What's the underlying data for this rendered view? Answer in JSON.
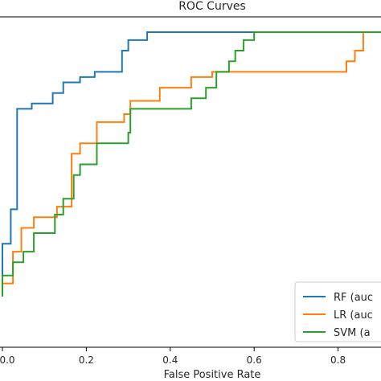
{
  "chart_data": {
    "type": "line",
    "title": "ROC Curves",
    "xlabel": "False Positive Rate",
    "ylabel": "",
    "xlim": [
      0.0,
      1.0
    ],
    "ylim": [
      0.0,
      1.03
    ],
    "xticks": [
      "0.0",
      "0.2",
      "0.4",
      "0.6",
      "0.8"
    ],
    "xtick_values": [
      0.0,
      0.2,
      0.4,
      0.6,
      0.8
    ],
    "grid": false,
    "legend_position": "bottom-right",
    "series": [
      {
        "name": "RF (auc",
        "color": "#1f77b4",
        "x": [
          0,
          0,
          0.02,
          0.02,
          0.035,
          0.035,
          0.07,
          0.07,
          0.12,
          0.12,
          0.145,
          0.145,
          0.185,
          0.185,
          0.22,
          0.22,
          0.275,
          0.275,
          0.285,
          0.285,
          0.3,
          0.3,
          0.345,
          0.345,
          0.57,
          0.57,
          1.0
        ],
        "y": [
          0,
          0.2,
          0.2,
          0.33,
          0.33,
          0.71,
          0.71,
          0.73,
          0.73,
          0.77,
          0.77,
          0.81,
          0.81,
          0.83,
          0.83,
          0.85,
          0.85,
          0.85,
          0.85,
          0.93,
          0.93,
          0.97,
          0.97,
          1.0,
          1.0,
          1.0,
          1.0
        ]
      },
      {
        "name": "LR (auc",
        "color": "#ff7f0e",
        "x": [
          0,
          0,
          0.025,
          0.025,
          0.045,
          0.045,
          0.075,
          0.075,
          0.13,
          0.13,
          0.165,
          0.165,
          0.185,
          0.185,
          0.225,
          0.225,
          0.285,
          0.285,
          0.29,
          0.29,
          0.305,
          0.305,
          0.375,
          0.375,
          0.43,
          0.43,
          0.45,
          0.45,
          0.5,
          0.5,
          0.81,
          0.81,
          0.82,
          0.82,
          0.84,
          0.84,
          0.86,
          0.86,
          1.0
        ],
        "y": [
          0,
          0.05,
          0.05,
          0.17,
          0.17,
          0.26,
          0.26,
          0.3,
          0.3,
          0.34,
          0.34,
          0.54,
          0.54,
          0.58,
          0.58,
          0.66,
          0.66,
          0.66,
          0.66,
          0.69,
          0.69,
          0.74,
          0.74,
          0.79,
          0.79,
          0.79,
          0.79,
          0.83,
          0.83,
          0.85,
          0.85,
          0.85,
          0.85,
          0.89,
          0.89,
          0.93,
          0.93,
          1.0,
          1.0
        ]
      },
      {
        "name": "SVM (a",
        "color": "#2ca02c",
        "x": [
          0,
          0,
          0.025,
          0.025,
          0.05,
          0.05,
          0.075,
          0.075,
          0.125,
          0.125,
          0.145,
          0.145,
          0.17,
          0.17,
          0.185,
          0.185,
          0.225,
          0.225,
          0.3,
          0.3,
          0.305,
          0.305,
          0.45,
          0.45,
          0.485,
          0.485,
          0.51,
          0.51,
          0.54,
          0.54,
          0.555,
          0.555,
          0.575,
          0.575,
          0.6,
          0.6,
          0.62,
          0.62,
          1.0
        ],
        "y": [
          0,
          0.08,
          0.08,
          0.13,
          0.13,
          0.17,
          0.17,
          0.24,
          0.24,
          0.31,
          0.31,
          0.37,
          0.37,
          0.46,
          0.46,
          0.5,
          0.5,
          0.58,
          0.58,
          0.62,
          0.62,
          0.71,
          0.71,
          0.75,
          0.75,
          0.79,
          0.79,
          0.85,
          0.85,
          0.89,
          0.89,
          0.93,
          0.93,
          0.97,
          0.97,
          1.0,
          1.0,
          1.0,
          1.0
        ]
      }
    ]
  }
}
